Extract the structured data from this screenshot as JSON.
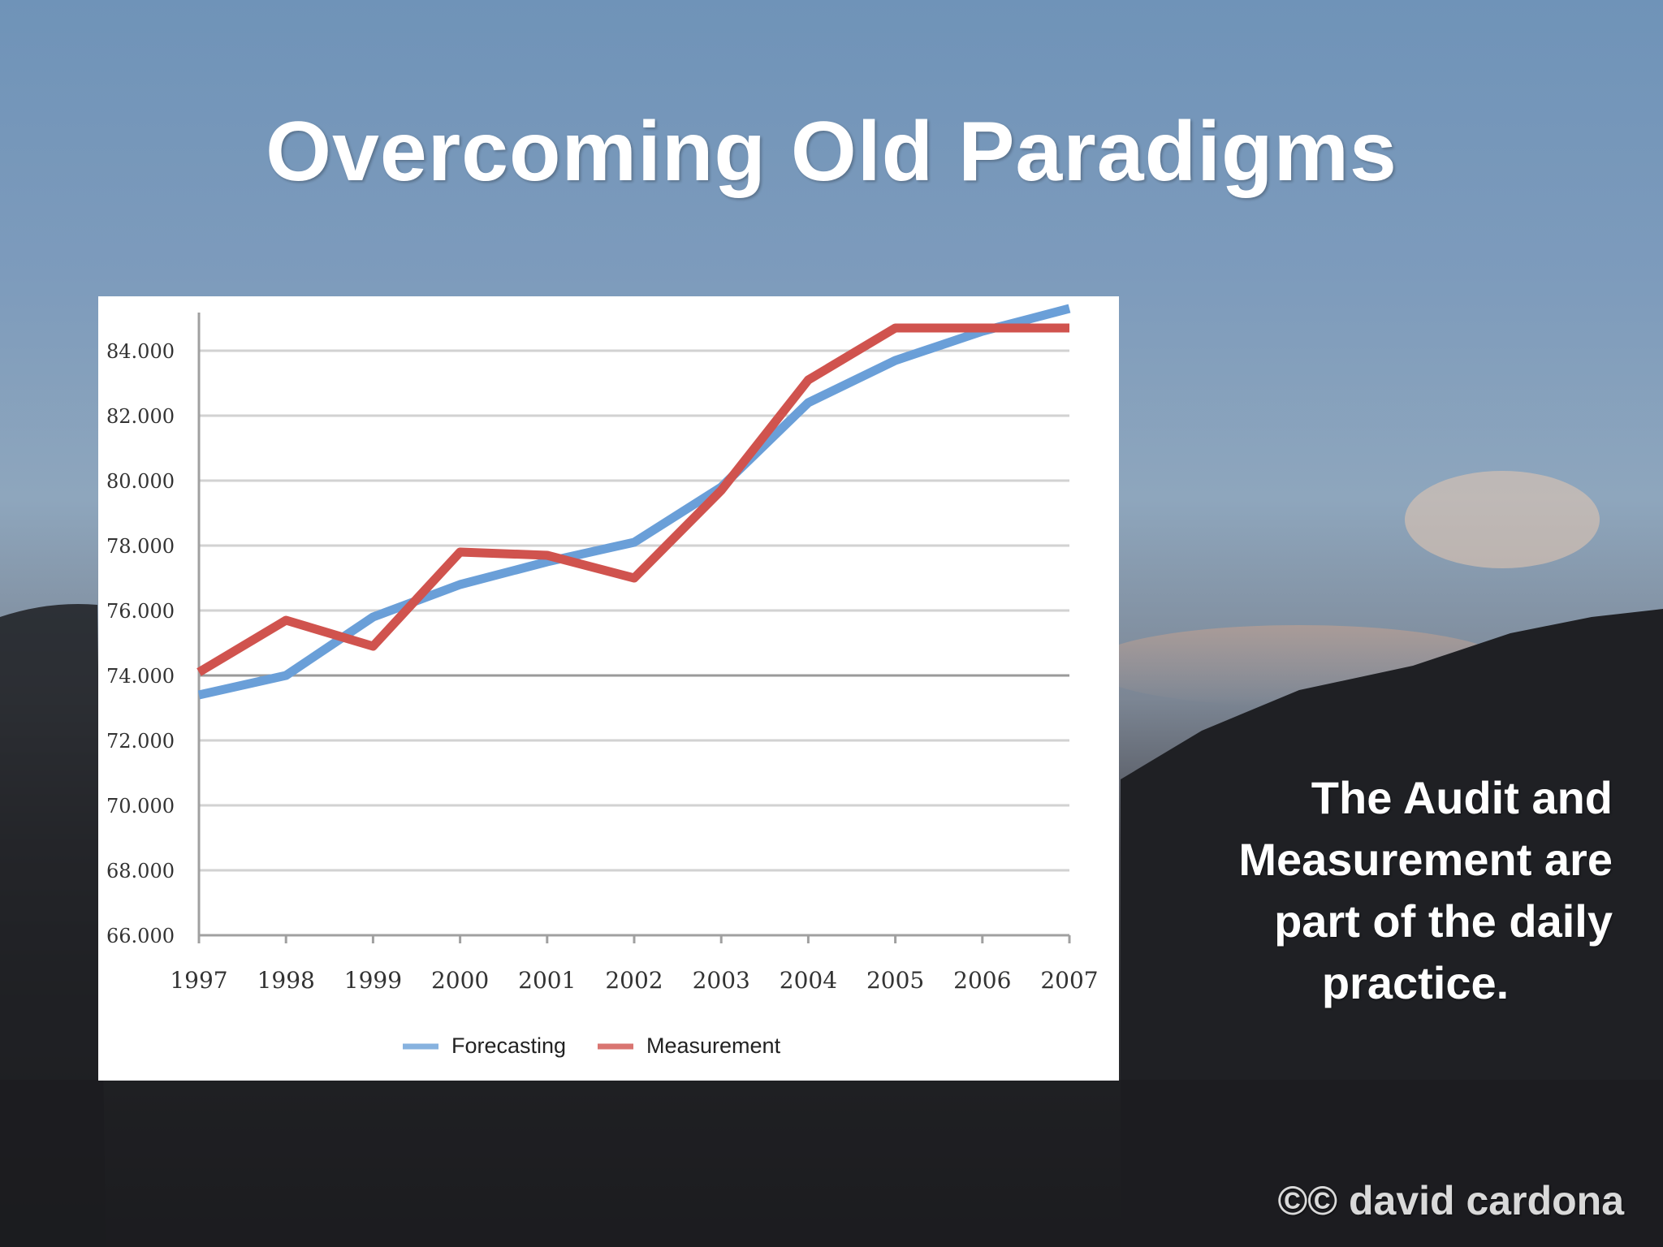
{
  "slide": {
    "title": "Overcoming Old Paradigms",
    "side_text": [
      "The Audit and",
      "Measurement are",
      "part of the daily",
      "practice."
    ],
    "credit": "©© david cardona"
  },
  "chart_data": {
    "type": "line",
    "x": [
      "1997",
      "1998",
      "1999",
      "2000",
      "2001",
      "2002",
      "2003",
      "2004",
      "2005",
      "2006",
      "2007"
    ],
    "y_ticks": [
      "66.000",
      "68.000",
      "70.000",
      "72.000",
      "74.000",
      "76.000",
      "78.000",
      "80.000",
      "82.000",
      "84.000"
    ],
    "ylim": [
      66000,
      85500
    ],
    "grid": true,
    "legend_position": "bottom",
    "series": [
      {
        "name": "Forecasting",
        "color": "#6a9fd8",
        "values": [
          73400,
          74000,
          75800,
          76800,
          77500,
          78100,
          79800,
          82400,
          83700,
          84600,
          85300
        ]
      },
      {
        "name": "Measurement",
        "color": "#d0534e",
        "values": [
          74100,
          75700,
          74900,
          77800,
          77700,
          77000,
          79700,
          83100,
          84700,
          84700,
          84700
        ]
      }
    ]
  }
}
